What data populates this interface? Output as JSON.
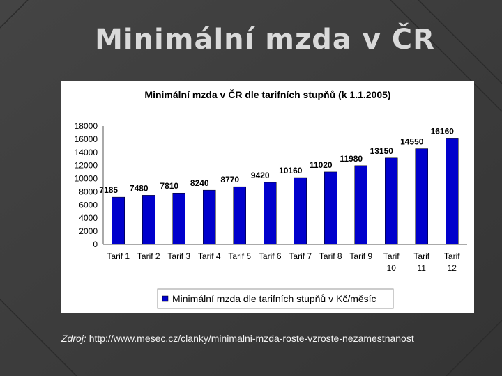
{
  "slide": {
    "title": "Minimální mzda v ČR",
    "source_label": "Zdroj:",
    "source_url": "http://www.mesec.cz/clanky/minimalni-mzda-roste-vzroste-nezamestnanost"
  },
  "colors": {
    "background": "#3c3c3c",
    "title": "#d9d9d9",
    "bar": "#0000cc",
    "panel": "#ffffff"
  },
  "chart_data": {
    "type": "bar",
    "title": "Minimální mzda v ČR dle tarifních stupňů (k 1.1.2005)",
    "categories": [
      "Tarif 1",
      "Tarif 2",
      "Tarif 3",
      "Tarif 4",
      "Tarif 5",
      "Tarif 6",
      "Tarif 7",
      "Tarif 8",
      "Tarif 9",
      "Tarif 10",
      "Tarif 11",
      "Tarif 12"
    ],
    "series": [
      {
        "name": "Minimální mzda dle tarifních stupňů v Kč/měsíc",
        "values": [
          7185,
          7480,
          7810,
          8240,
          8770,
          9420,
          10160,
          11020,
          11980,
          13150,
          14550,
          16160
        ]
      }
    ],
    "ylim": [
      0,
      18000
    ],
    "yticks": [
      0,
      2000,
      4000,
      6000,
      8000,
      10000,
      12000,
      14000,
      16000,
      18000
    ],
    "grid": false,
    "legend": "bottom",
    "data_labels": true
  }
}
